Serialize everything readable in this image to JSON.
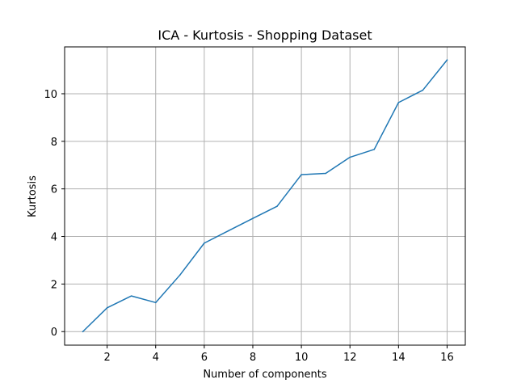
{
  "chart_data": {
    "type": "line",
    "title": "ICA - Kurtosis - Shopping Dataset",
    "xlabel": "Number of components",
    "ylabel": "Kurtosis",
    "xlim": [
      0.25,
      16.75
    ],
    "ylim": [
      -0.57,
      11.97
    ],
    "xticks": [
      2,
      4,
      6,
      8,
      10,
      12,
      14,
      16
    ],
    "yticks": [
      0,
      2,
      4,
      6,
      8,
      10
    ],
    "grid": true,
    "legend": false,
    "series": [
      {
        "color": "#1f77b4",
        "x": [
          1,
          2,
          3,
          4,
          5,
          6,
          7,
          8,
          9,
          10,
          11,
          12,
          13,
          14,
          15,
          16
        ],
        "y": [
          0.0,
          1.0,
          1.5,
          1.22,
          2.38,
          3.72,
          4.24,
          4.76,
          5.27,
          6.6,
          6.65,
          7.33,
          7.66,
          9.63,
          10.15,
          11.42
        ]
      }
    ]
  }
}
